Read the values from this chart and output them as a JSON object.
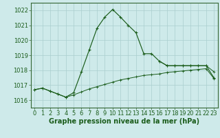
{
  "x": [
    0,
    1,
    2,
    3,
    4,
    5,
    6,
    7,
    8,
    9,
    10,
    11,
    12,
    13,
    14,
    15,
    16,
    17,
    18,
    19,
    20,
    21,
    22,
    23
  ],
  "y_main": [
    1016.7,
    1016.8,
    1016.6,
    1016.4,
    1016.2,
    1016.5,
    1017.9,
    1019.35,
    1020.8,
    1021.55,
    1022.05,
    1021.55,
    1021.0,
    1020.5,
    1019.1,
    1019.1,
    1018.6,
    1018.3,
    1018.3,
    1018.3,
    1018.3,
    1018.3,
    1018.3,
    1017.5
  ],
  "y_flat1": [
    1016.7,
    1016.8,
    1016.6,
    1016.4,
    1016.2,
    1016.35,
    1016.55,
    1016.75,
    1016.9,
    1017.05,
    1017.2,
    1017.35,
    1017.45,
    1017.55,
    1017.65,
    1017.7,
    1017.75,
    1017.85,
    1017.9,
    1017.95,
    1018.0,
    1018.05,
    1018.1,
    1017.45
  ],
  "y_flat2": [
    1016.7,
    1016.8,
    1016.6,
    1016.4,
    1016.2,
    1016.35,
    1016.55,
    1016.75,
    1016.9,
    1017.05,
    1017.2,
    1017.35,
    1017.45,
    1017.55,
    1017.65,
    1017.7,
    1017.75,
    1017.85,
    1017.9,
    1017.95,
    1018.0,
    1018.05,
    1018.1,
    1017.45
  ],
  "y_top_band": [
    null,
    null,
    null,
    null,
    null,
    null,
    null,
    null,
    null,
    null,
    null,
    null,
    null,
    null,
    null,
    null,
    1018.6,
    1018.3,
    1018.3,
    1018.3,
    1018.3,
    1018.3,
    1018.3,
    1017.9
  ],
  "background_color": "#ceeaea",
  "grid_color": "#aacece",
  "line_color": "#1a5c1a",
  "xlabel": "Graphe pression niveau de la mer (hPa)",
  "ylim": [
    1015.5,
    1022.5
  ],
  "xlim": [
    -0.5,
    23.5
  ],
  "yticks": [
    1016,
    1017,
    1018,
    1019,
    1020,
    1021,
    1022
  ],
  "xticks": [
    0,
    1,
    2,
    3,
    4,
    5,
    6,
    7,
    8,
    9,
    10,
    11,
    12,
    13,
    14,
    15,
    16,
    17,
    18,
    19,
    20,
    21,
    22,
    23
  ],
  "fontsize_label": 7,
  "fontsize_tick": 6
}
